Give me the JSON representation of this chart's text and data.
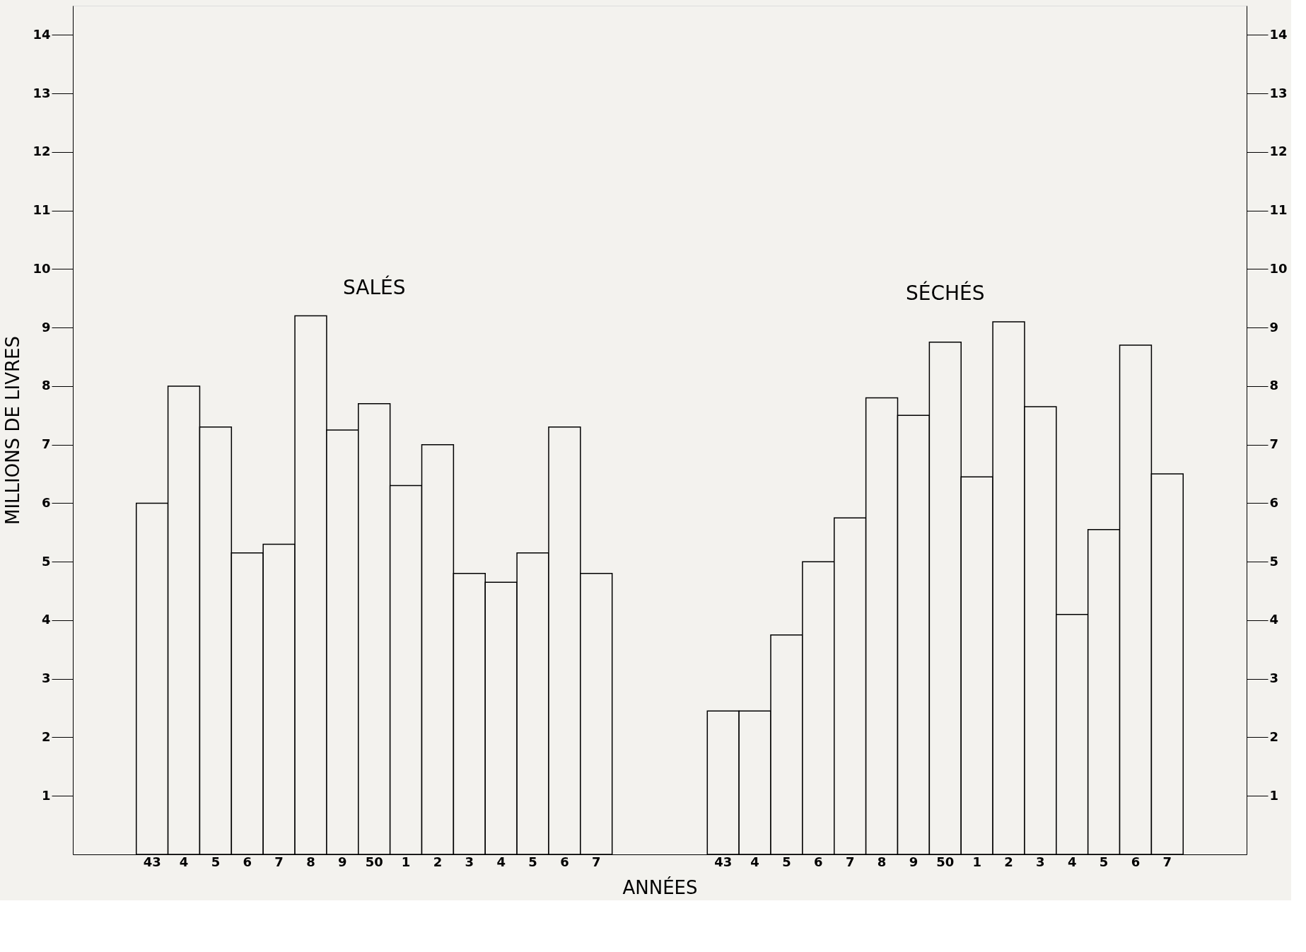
{
  "chart_data": {
    "type": "bar",
    "xlabel": "ANNÉES",
    "ylabel": "MILLIONS DE LIVRES",
    "categories": [
      null,
      null,
      "43",
      "4",
      "5",
      "6",
      "7",
      "8",
      "9",
      "50",
      "1",
      "2",
      "3",
      "4",
      "5",
      "6",
      "7",
      null,
      null,
      null,
      "43",
      "4",
      "5",
      "6",
      "7",
      "8",
      "9",
      "50",
      "1",
      "2",
      "3",
      "4",
      "5",
      "6",
      "7",
      null,
      null
    ],
    "series": [
      {
        "name": "SALÉS",
        "color": "#f3f2ee",
        "values": [
          null,
          null,
          6.0,
          8.0,
          7.3,
          5.15,
          5.3,
          9.2,
          7.25,
          7.7,
          6.3,
          7.0,
          4.8,
          4.65,
          5.15,
          7.3,
          4.8,
          null,
          null,
          null,
          null,
          null,
          null,
          null,
          null,
          null,
          null,
          null,
          null,
          null,
          null,
          null,
          null,
          null,
          null,
          null,
          null
        ]
      },
      {
        "name": "SÉCHÉS",
        "color": "#f3f2ee",
        "values": [
          null,
          null,
          null,
          null,
          null,
          null,
          null,
          null,
          null,
          null,
          null,
          null,
          null,
          null,
          null,
          null,
          null,
          null,
          null,
          null,
          2.45,
          2.45,
          3.75,
          5.0,
          5.75,
          7.8,
          7.5,
          8.75,
          6.45,
          9.1,
          7.65,
          4.1,
          5.55,
          8.7,
          6.5,
          null,
          null
        ]
      }
    ],
    "ylim": [
      0,
      14.5
    ],
    "yticks": [
      1,
      2,
      3,
      4,
      5,
      6,
      7,
      8,
      9,
      10,
      11,
      12,
      13,
      14
    ],
    "y2lim": [
      0,
      14.5
    ],
    "y2ticks": [
      1,
      2,
      3,
      4,
      5,
      6,
      7,
      8,
      9,
      10,
      11,
      12,
      13,
      14
    ],
    "grid": false
  }
}
